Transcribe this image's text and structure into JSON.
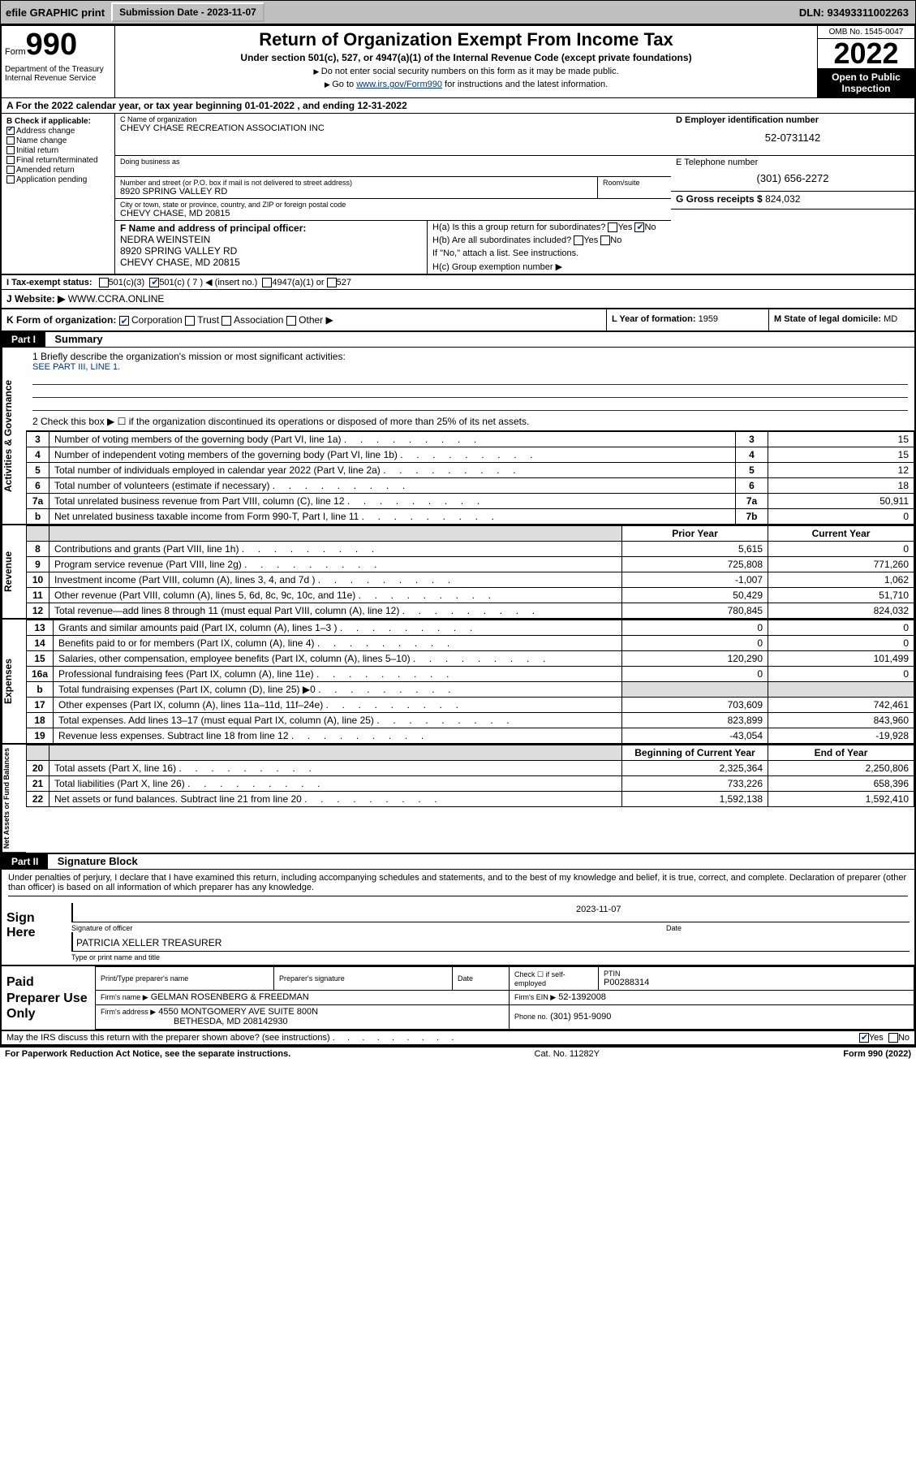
{
  "topbar": {
    "efile": "efile GRAPHIC print",
    "submission_label": "Submission Date - 2023-11-07",
    "dln": "DLN: 93493311002263"
  },
  "header": {
    "form_word": "Form",
    "form_num": "990",
    "title": "Return of Organization Exempt From Income Tax",
    "subtitle": "Under section 501(c), 527, or 4947(a)(1) of the Internal Revenue Code (except private foundations)",
    "note1": "Do not enter social security numbers on this form as it may be made public.",
    "note2_pre": "Go to ",
    "note2_link": "www.irs.gov/Form990",
    "note2_post": " for instructions and the latest information.",
    "dept": "Department of the Treasury\nInternal Revenue Service",
    "omb": "OMB No. 1545-0047",
    "year": "2022",
    "open": "Open to Public Inspection"
  },
  "row_a": "A For the 2022 calendar year, or tax year beginning 01-01-2022    , and ending 12-31-2022",
  "box_b": {
    "title": "B Check if applicable:",
    "addr_change": "Address change",
    "name_change": "Name change",
    "initial": "Initial return",
    "final": "Final return/terminated",
    "amended": "Amended return",
    "app_pending": "Application pending"
  },
  "box_c": {
    "label": "C Name of organization",
    "name": "CHEVY CHASE RECREATION ASSOCIATION INC",
    "dba_label": "Doing business as",
    "street_label": "Number and street (or P.O. box if mail is not delivered to street address)",
    "room_label": "Room/suite",
    "street": "8920 SPRING VALLEY RD",
    "city_label": "City or town, state or province, country, and ZIP or foreign postal code",
    "city": "CHEVY CHASE, MD  20815"
  },
  "box_d": {
    "label": "D Employer identification number",
    "val": "52-0731142"
  },
  "box_e": {
    "label": "E Telephone number",
    "val": "(301) 656-2272"
  },
  "box_g": {
    "label": "G Gross receipts $",
    "val": "824,032"
  },
  "box_f": {
    "label": "F Name and address of principal officer:",
    "name": "NEDRA WEINSTEIN",
    "addr1": "8920 SPRING VALLEY RD",
    "addr2": "CHEVY CHASE, MD  20815"
  },
  "box_h": {
    "a": "H(a)  Is this a group return for subordinates?",
    "b": "H(b)  Are all subordinates included?",
    "b_note": "If \"No,\" attach a list. See instructions.",
    "c": "H(c)  Group exemption number ▶"
  },
  "row_i": {
    "label": "I  Tax-exempt status:",
    "c3": "501(c)(3)",
    "c": "501(c) ( 7 ) ◀ (insert no.)",
    "a1": "4947(a)(1) or",
    "s527": "527"
  },
  "row_j": {
    "label": "J  Website: ▶",
    "val": "WWW.CCRA.ONLINE"
  },
  "row_k": {
    "label": "K Form of organization:",
    "corp": "Corporation",
    "trust": "Trust",
    "assoc": "Association",
    "other": "Other ▶"
  },
  "row_l": {
    "label": "L Year of formation:",
    "val": "1959"
  },
  "row_m": {
    "label": "M State of legal domicile:",
    "val": "MD"
  },
  "part1": {
    "hdr": "Part I",
    "title": "Summary"
  },
  "mission": {
    "q1": "1  Briefly describe the organization's mission or most significant activities:",
    "text": "SEE PART III, LINE 1.",
    "q2": "2  Check this box ▶ ☐ if the organization discontinued its operations or disposed of more than 25% of its net assets."
  },
  "gov_lines": [
    {
      "n": "3",
      "desc": "Number of voting members of the governing body (Part VI, line 1a)",
      "box": "3",
      "val": "15"
    },
    {
      "n": "4",
      "desc": "Number of independent voting members of the governing body (Part VI, line 1b)",
      "box": "4",
      "val": "15"
    },
    {
      "n": "5",
      "desc": "Total number of individuals employed in calendar year 2022 (Part V, line 2a)",
      "box": "5",
      "val": "12"
    },
    {
      "n": "6",
      "desc": "Total number of volunteers (estimate if necessary)",
      "box": "6",
      "val": "18"
    },
    {
      "n": "7a",
      "desc": "Total unrelated business revenue from Part VIII, column (C), line 12",
      "box": "7a",
      "val": "50,911"
    },
    {
      "n": "b",
      "desc": "Net unrelated business taxable income from Form 990-T, Part I, line 11",
      "box": "7b",
      "val": "0"
    }
  ],
  "rev_hdr": {
    "prior": "Prior Year",
    "current": "Current Year"
  },
  "rev_lines": [
    {
      "n": "8",
      "desc": "Contributions and grants (Part VIII, line 1h)",
      "p": "5,615",
      "c": "0"
    },
    {
      "n": "9",
      "desc": "Program service revenue (Part VIII, line 2g)",
      "p": "725,808",
      "c": "771,260"
    },
    {
      "n": "10",
      "desc": "Investment income (Part VIII, column (A), lines 3, 4, and 7d )",
      "p": "-1,007",
      "c": "1,062"
    },
    {
      "n": "11",
      "desc": "Other revenue (Part VIII, column (A), lines 5, 6d, 8c, 9c, 10c, and 11e)",
      "p": "50,429",
      "c": "51,710"
    },
    {
      "n": "12",
      "desc": "Total revenue—add lines 8 through 11 (must equal Part VIII, column (A), line 12)",
      "p": "780,845",
      "c": "824,032"
    }
  ],
  "exp_lines": [
    {
      "n": "13",
      "desc": "Grants and similar amounts paid (Part IX, column (A), lines 1–3 )",
      "p": "0",
      "c": "0"
    },
    {
      "n": "14",
      "desc": "Benefits paid to or for members (Part IX, column (A), line 4)",
      "p": "0",
      "c": "0"
    },
    {
      "n": "15",
      "desc": "Salaries, other compensation, employee benefits (Part IX, column (A), lines 5–10)",
      "p": "120,290",
      "c": "101,499"
    },
    {
      "n": "16a",
      "desc": "Professional fundraising fees (Part IX, column (A), line 11e)",
      "p": "0",
      "c": "0"
    },
    {
      "n": "b",
      "desc": "Total fundraising expenses (Part IX, column (D), line 25) ▶0",
      "p": "",
      "c": "",
      "shade": true
    },
    {
      "n": "17",
      "desc": "Other expenses (Part IX, column (A), lines 11a–11d, 11f–24e)",
      "p": "703,609",
      "c": "742,461"
    },
    {
      "n": "18",
      "desc": "Total expenses. Add lines 13–17 (must equal Part IX, column (A), line 25)",
      "p": "823,899",
      "c": "843,960"
    },
    {
      "n": "19",
      "desc": "Revenue less expenses. Subtract line 18 from line 12",
      "p": "-43,054",
      "c": "-19,928"
    }
  ],
  "net_hdr": {
    "beg": "Beginning of Current Year",
    "end": "End of Year"
  },
  "net_lines": [
    {
      "n": "20",
      "desc": "Total assets (Part X, line 16)",
      "p": "2,325,364",
      "c": "2,250,806"
    },
    {
      "n": "21",
      "desc": "Total liabilities (Part X, line 26)",
      "p": "733,226",
      "c": "658,396"
    },
    {
      "n": "22",
      "desc": "Net assets or fund balances. Subtract line 21 from line 20",
      "p": "1,592,138",
      "c": "1,592,410"
    }
  ],
  "side_labels": {
    "gov": "Activities & Governance",
    "rev": "Revenue",
    "exp": "Expenses",
    "net": "Net Assets or Fund Balances"
  },
  "part2": {
    "hdr": "Part II",
    "title": "Signature Block"
  },
  "sig": {
    "declare": "Under penalties of perjury, I declare that I have examined this return, including accompanying schedules and statements, and to the best of my knowledge and belief, it is true, correct, and complete. Declaration of preparer (other than officer) is based on all information of which preparer has any knowledge.",
    "sign_here": "Sign Here",
    "sig_officer": "Signature of officer",
    "date_label": "Date",
    "date_val": "2023-11-07",
    "name": "PATRICIA XELLER  TREASURER",
    "name_label": "Type or print name and title"
  },
  "prep": {
    "title": "Paid Preparer Use Only",
    "h1": "Print/Type preparer's name",
    "h2": "Preparer's signature",
    "h3": "Date",
    "h4": "Check ☐ if self-employed",
    "h5": "PTIN",
    "ptin": "P00288314",
    "firm_label": "Firm's name    ▶",
    "firm": "GELMAN ROSENBERG & FREEDMAN",
    "ein_label": "Firm's EIN ▶",
    "ein": "52-1392008",
    "addr_label": "Firm's address ▶",
    "addr1": "4550 MONTGOMERY AVE SUITE 800N",
    "addr2": "BETHESDA, MD  208142930",
    "phone_label": "Phone no.",
    "phone": "(301) 951-9090"
  },
  "footer": {
    "q": "May the IRS discuss this return with the preparer shown above? (see instructions)",
    "yes": "Yes",
    "no": "No",
    "paperwork": "For Paperwork Reduction Act Notice, see the separate instructions.",
    "cat": "Cat. No. 11282Y",
    "form": "Form 990 (2022)"
  }
}
